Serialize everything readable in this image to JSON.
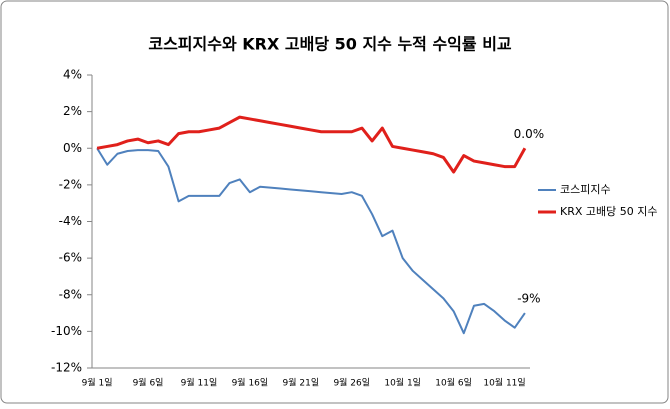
{
  "chart_data": {
    "type": "line",
    "title": "코스피지수와 KRX 고배당 50 지수 누적 수익률 비교",
    "categories": [
      "9월 1일",
      null,
      null,
      null,
      null,
      "9월 6일",
      null,
      null,
      null,
      null,
      "9월 11일",
      null,
      null,
      null,
      null,
      "9월 16일",
      null,
      null,
      null,
      null,
      "9월 21일",
      null,
      null,
      null,
      null,
      "9월 26일",
      null,
      null,
      null,
      null,
      "10월 1일",
      null,
      null,
      null,
      null,
      "10월 6일",
      null,
      null,
      null,
      null,
      "10월 11일",
      null,
      null
    ],
    "series": [
      {
        "name": "코스피지수",
        "color": "#4f81bd",
        "values": [
          0,
          -0.9,
          -0.3,
          -0.15,
          -0.1,
          -0.1,
          -0.15,
          -1.0,
          -2.9,
          -2.6,
          -2.6,
          -2.6,
          -2.6,
          -1.9,
          -1.7,
          -2.4,
          -2.1,
          -2.15,
          -2.2,
          -2.25,
          -2.3,
          -2.35,
          -2.4,
          -2.45,
          -2.5,
          -2.4,
          -2.6,
          -3.6,
          -4.8,
          -4.5,
          -6.0,
          -6.7,
          -7.2,
          -7.7,
          -8.2,
          -8.9,
          -10.1,
          -8.6,
          -8.5,
          -8.9,
          -9.4,
          -9.8,
          -9.0
        ],
        "value_labels": [
          null,
          null,
          null,
          null,
          null,
          null,
          null,
          null,
          null,
          null,
          null,
          null,
          null,
          null,
          null,
          null,
          null,
          null,
          null,
          null,
          null,
          null,
          null,
          null,
          null,
          null,
          null,
          null,
          null,
          null,
          null,
          null,
          null,
          null,
          null,
          null,
          null,
          null,
          null,
          null,
          null,
          null,
          "-9%"
        ]
      },
      {
        "name": "KRX 고배당 50 지수",
        "color": "#e0201b",
        "values": [
          0,
          0.1,
          0.2,
          0.4,
          0.5,
          0.3,
          0.4,
          0.2,
          0.8,
          0.9,
          0.9,
          1.0,
          1.1,
          1.4,
          1.7,
          1.6,
          1.5,
          1.4,
          1.3,
          1.2,
          1.1,
          1.0,
          0.9,
          0.9,
          0.9,
          0.9,
          1.1,
          0.4,
          1.1,
          0.1,
          0.0,
          -0.1,
          -0.2,
          -0.3,
          -0.5,
          -1.3,
          -0.4,
          -0.7,
          -0.8,
          -0.9,
          -1.0,
          -1.0,
          0.0
        ],
        "value_labels": [
          null,
          null,
          null,
          null,
          null,
          null,
          null,
          null,
          null,
          null,
          null,
          null,
          null,
          null,
          null,
          null,
          null,
          null,
          null,
          null,
          null,
          null,
          null,
          null,
          null,
          null,
          null,
          null,
          null,
          null,
          null,
          null,
          null,
          null,
          null,
          null,
          null,
          null,
          null,
          null,
          null,
          null,
          "0.0%"
        ]
      }
    ],
    "ylim": [
      -12,
      4
    ],
    "yticks": [
      {
        "value": -12,
        "label": "-12%"
      },
      {
        "value": -10,
        "label": "-10%"
      },
      {
        "value": -8,
        "label": "-8%"
      },
      {
        "value": -6,
        "label": "-6%"
      },
      {
        "value": -4,
        "label": "-4%"
      },
      {
        "value": -2,
        "label": "-2%"
      },
      {
        "value": 0,
        "label": "0%"
      },
      {
        "value": 2,
        "label": "2%"
      },
      {
        "value": 4,
        "label": "4%"
      }
    ],
    "grid": false,
    "legend": "right"
  }
}
